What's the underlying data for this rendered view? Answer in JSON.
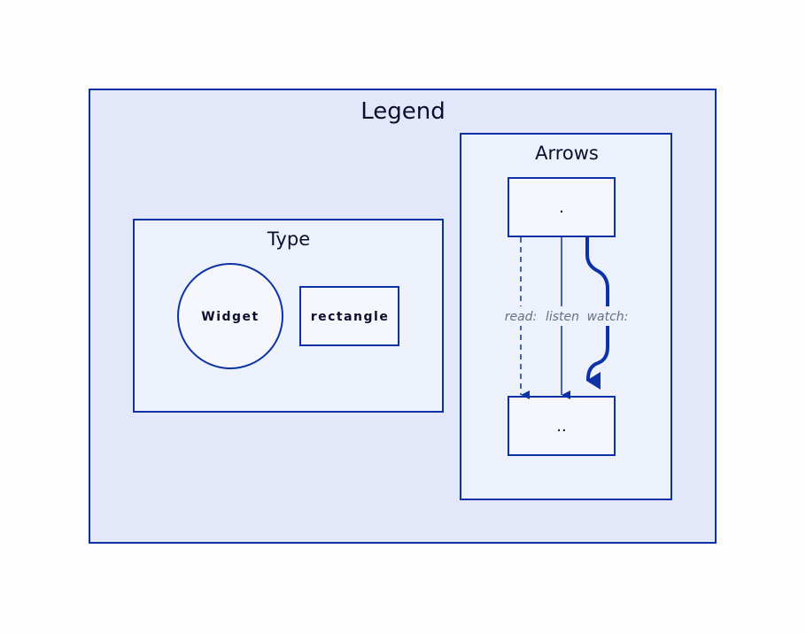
{
  "legend": {
    "title": "Legend",
    "type_group": {
      "title": "Type",
      "widget_label": "Widget",
      "rectangle_label": "rectangle"
    },
    "arrows_group": {
      "title": "Arrows",
      "source_label": ".",
      "target_label": "..",
      "edges": [
        {
          "label": "read:",
          "style": "dashed"
        },
        {
          "label": "listen",
          "style": "solid"
        },
        {
          "label": "watch:",
          "style": "bold"
        }
      ]
    }
  },
  "colors": {
    "outer_fill": "#e2e8fa",
    "group_fill": "#edf1fc",
    "node_fill": "#f5f7fd",
    "stroke": "#0d32a6"
  }
}
